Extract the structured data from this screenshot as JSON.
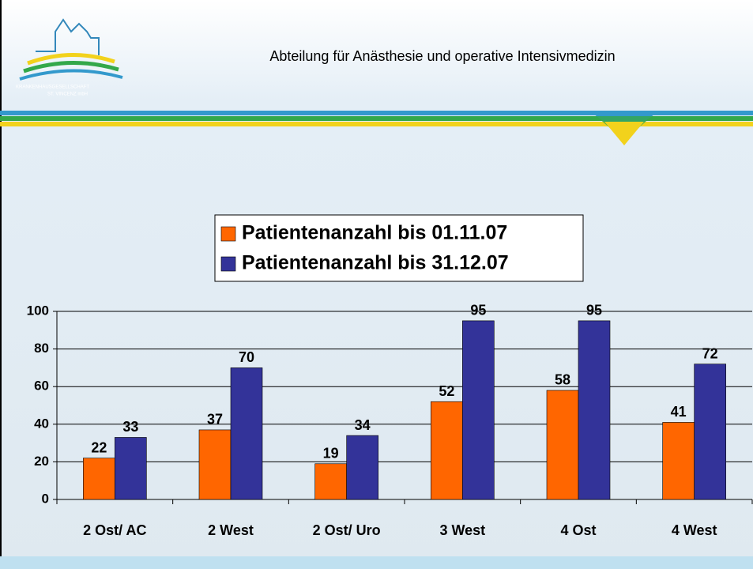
{
  "header": {
    "title": "Abteilung für Anästhesie und operative Intensivmedizin",
    "logo_line1": "KRANKENHAUSGESELLSCHAFT",
    "logo_line2": "ST. VINCENZ mbH"
  },
  "chart_data": {
    "type": "bar",
    "categories": [
      "2 Ost/ AC",
      "2 West",
      "2 Ost/ Uro",
      "3 West",
      "4 Ost",
      "4 West"
    ],
    "series": [
      {
        "name": "Patientenanzahl bis 01.11.07",
        "color": "#ff6600",
        "values": [
          22,
          37,
          19,
          52,
          58,
          41
        ]
      },
      {
        "name": "Patientenanzahl bis 31.12.07",
        "color": "#333399",
        "values": [
          33,
          70,
          34,
          95,
          95,
          72
        ]
      }
    ],
    "ylim": [
      0,
      100
    ],
    "yticks": [
      0,
      20,
      40,
      60,
      80,
      100
    ],
    "grid": true,
    "legend": "top"
  }
}
